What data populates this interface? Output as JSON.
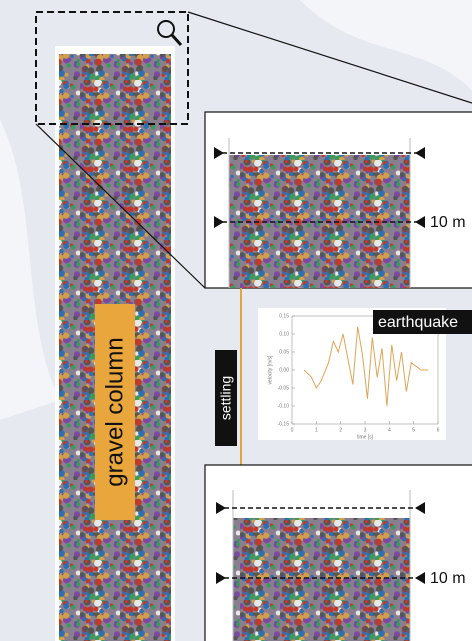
{
  "column_label": "gravel column",
  "settling_label": "settling",
  "earthquake_label": "earthquake",
  "top_panel": {
    "depth_label": "10 m"
  },
  "bottom_panel": {
    "depth_label": "10 m"
  },
  "inset_chart": {
    "type": "line",
    "x_label": "time [s]",
    "y_label": "velocity [m/s]",
    "xlim": [
      0,
      6
    ],
    "ylim": [
      -0.15,
      0.15
    ],
    "xticks": [
      0,
      1,
      2,
      3,
      4,
      5,
      6
    ],
    "yticks": [
      {
        "value": 0.15,
        "label": "0.15"
      },
      {
        "value": 0.1,
        "label": "0.10"
      },
      {
        "value": 0.05,
        "label": "0.05"
      },
      {
        "value": 0,
        "label": "0.00"
      },
      {
        "value": -0.05,
        "label": "-0.05"
      },
      {
        "value": -0.1,
        "label": "-0.10"
      },
      {
        "value": -0.15,
        "label": "-0.15"
      }
    ],
    "color": "#d9a55a",
    "x": [
      0.5,
      0.8,
      1.0,
      1.2,
      1.5,
      1.7,
      1.9,
      2.1,
      2.3,
      2.5,
      2.7,
      2.9,
      3.1,
      3.3,
      3.5,
      3.7,
      3.9,
      4.1,
      4.3,
      4.5,
      4.7,
      4.9,
      5.1,
      5.3,
      5.6
    ],
    "values": [
      0,
      -0.02,
      -0.05,
      -0.03,
      0.02,
      0.08,
      0.05,
      0.1,
      0.03,
      -0.04,
      0.12,
      0.04,
      -0.08,
      0.09,
      -0.02,
      0.06,
      -0.1,
      0.07,
      -0.03,
      0.05,
      -0.06,
      0.02,
      0.01,
      0,
      0
    ]
  }
}
